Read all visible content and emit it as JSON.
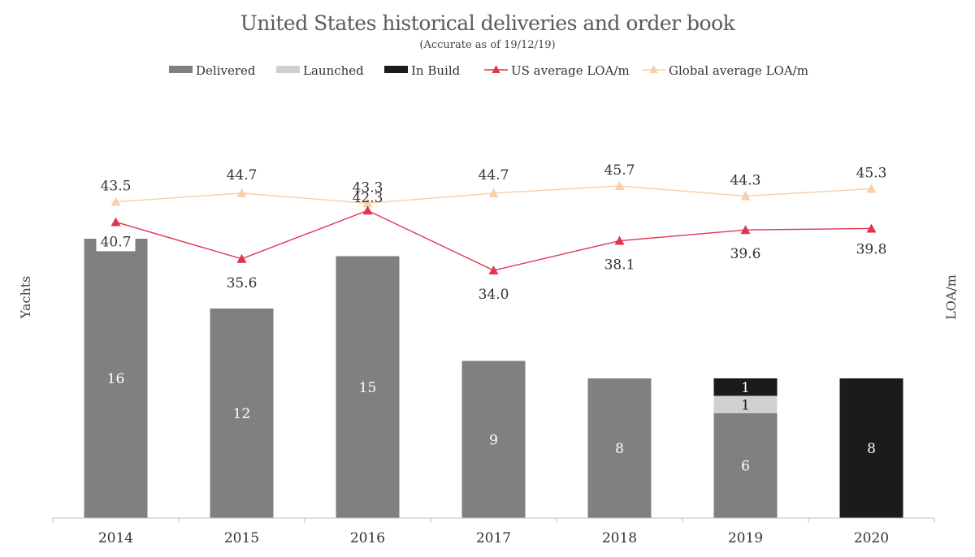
{
  "chart_data": {
    "type": "bar",
    "title": "United States historical deliveries and order book",
    "subtitle": "(Accurate as of 19/12/19)",
    "ylabel": "Yachts",
    "y2label": "LOA/m",
    "categories": [
      "2014",
      "2015",
      "2016",
      "2017",
      "2018",
      "2019",
      "2020"
    ],
    "stacked": true,
    "ylim": [
      0,
      17
    ],
    "y2lim": [
      0,
      56
    ],
    "legend_position": "top",
    "series": [
      {
        "name": "Delivered",
        "kind": "bar",
        "color": "#808080",
        "label_color": "#ffffff",
        "values": [
          16,
          12,
          15,
          9,
          8,
          6,
          0
        ],
        "labels": [
          "16",
          "12",
          "15",
          "9",
          "8",
          "6",
          ""
        ]
      },
      {
        "name": "Launched",
        "kind": "bar",
        "color": "#d0d0d0",
        "label_color": "#1a1a1a",
        "values": [
          0,
          0,
          0,
          0,
          0,
          1,
          0
        ],
        "labels": [
          "",
          "",
          "",
          "",
          "",
          "1",
          ""
        ]
      },
      {
        "name": "In Build",
        "kind": "bar",
        "color": "#1c1a1b",
        "label_color": "#ffffff",
        "values": [
          0,
          0,
          0,
          0,
          0,
          1,
          8
        ],
        "labels": [
          "",
          "",
          "",
          "",
          "",
          "1",
          "8"
        ]
      },
      {
        "name": "US average LOA/m",
        "kind": "line",
        "axis": "y2",
        "color": "#e0344f",
        "marker": "triangle",
        "values": [
          40.7,
          35.6,
          42.3,
          34.0,
          38.1,
          39.6,
          39.8
        ],
        "labels": [
          "40.7",
          "35.6",
          "42.3",
          "34.0",
          "38.1",
          "39.6",
          "39.8"
        ]
      },
      {
        "name": "Global average LOA/m",
        "kind": "line",
        "axis": "y2",
        "color": "#f8cfa8",
        "marker": "triangle",
        "values": [
          43.5,
          44.7,
          43.3,
          44.7,
          45.7,
          44.3,
          45.3
        ],
        "labels": [
          "43.5",
          "44.7",
          "43.3",
          "44.7",
          "45.7",
          "44.3",
          "45.3"
        ]
      }
    ]
  }
}
